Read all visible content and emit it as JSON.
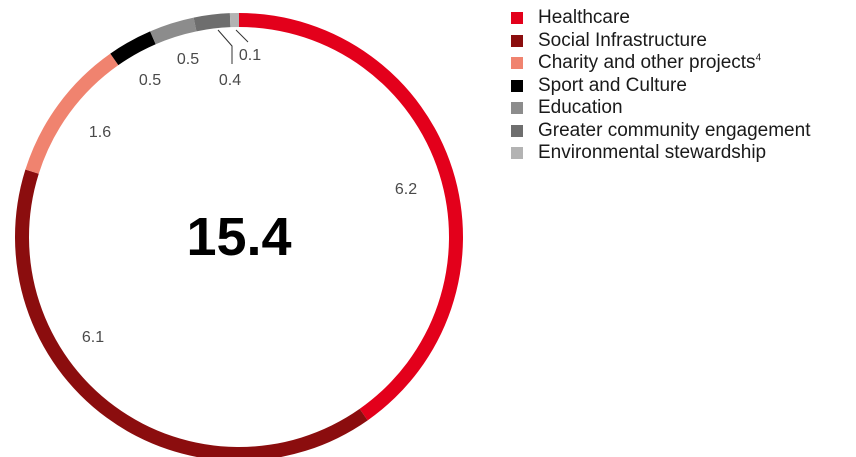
{
  "chart_data": {
    "type": "pie",
    "variant": "donut",
    "total_label": "15.4",
    "series": [
      {
        "name": "Healthcare",
        "value": 6.2,
        "label": "6.2",
        "color": "#e3001b"
      },
      {
        "name": "Social Infrastructure",
        "value": 6.1,
        "label": "6.1",
        "color": "#8b0d0e"
      },
      {
        "name": "Charity and other projects",
        "footnote": "4",
        "value": 1.6,
        "label": "1.6",
        "color": "#f0836f"
      },
      {
        "name": "Sport and Culture",
        "value": 0.5,
        "label": "0.5",
        "color": "#000000"
      },
      {
        "name": "Education",
        "value": 0.5,
        "label": "0.5",
        "color": "#8c8c8c"
      },
      {
        "name": "Greater community engagement",
        "value": 0.4,
        "label": "0.4",
        "color": "#6e6e6e"
      },
      {
        "name": "Environmental stewardship",
        "value": 0.1,
        "label": "0.1",
        "color": "#b3b3b3"
      }
    ],
    "legend_position": "top-right"
  }
}
